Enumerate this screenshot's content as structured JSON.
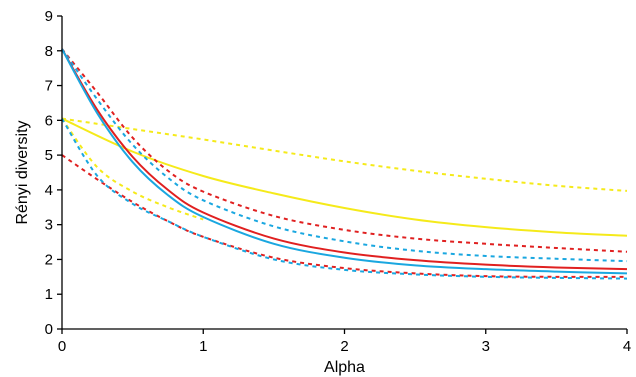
{
  "chart_data": {
    "type": "line",
    "xlabel": "Alpha",
    "ylabel": "Rényi diversity",
    "xlim": [
      0,
      4
    ],
    "ylim": [
      0,
      9
    ],
    "xticks": [
      0,
      1,
      2,
      3,
      4
    ],
    "yticks": [
      0,
      1,
      2,
      3,
      4,
      5,
      6,
      7,
      8,
      9
    ],
    "grid": false,
    "legend": "none",
    "series": [
      {
        "color": "#f5ea1a",
        "style": "dashed",
        "x": [
          0,
          0.5,
          1,
          1.5,
          2,
          2.5,
          3,
          3.5,
          4
        ],
        "y": [
          6.05,
          5.75,
          5.45,
          5.13,
          4.82,
          4.55,
          4.32,
          4.12,
          3.97
        ]
      },
      {
        "color": "#f5ea1a",
        "style": "solid",
        "x": [
          0,
          0.5,
          1,
          1.5,
          2,
          2.5,
          3,
          3.5,
          4
        ],
        "y": [
          6.05,
          5.1,
          4.4,
          3.9,
          3.48,
          3.15,
          2.93,
          2.78,
          2.68
        ]
      },
      {
        "color": "#e02020",
        "style": "dashed",
        "x": [
          0,
          0.25,
          0.5,
          0.75,
          1,
          1.5,
          2,
          2.5,
          3,
          3.5,
          4
        ],
        "y": [
          8.05,
          6.8,
          5.5,
          4.55,
          3.95,
          3.25,
          2.85,
          2.6,
          2.45,
          2.33,
          2.22
        ]
      },
      {
        "color": "#1aa7e0",
        "style": "dashed",
        "x": [
          0,
          0.25,
          0.5,
          0.75,
          1,
          1.5,
          2,
          2.5,
          3,
          3.5,
          4
        ],
        "y": [
          8.05,
          6.6,
          5.3,
          4.35,
          3.7,
          2.95,
          2.52,
          2.25,
          2.1,
          2.02,
          1.95
        ]
      },
      {
        "color": "#e02020",
        "style": "solid",
        "x": [
          0,
          0.25,
          0.5,
          0.75,
          1,
          1.5,
          2,
          2.5,
          3,
          3.5,
          4
        ],
        "y": [
          8.05,
          6.3,
          4.95,
          4.0,
          3.35,
          2.6,
          2.2,
          1.98,
          1.85,
          1.77,
          1.72
        ]
      },
      {
        "color": "#1aa7e0",
        "style": "solid",
        "x": [
          0,
          0.25,
          0.5,
          0.75,
          1,
          1.5,
          2,
          2.5,
          3,
          3.5,
          4
        ],
        "y": [
          8.05,
          6.2,
          4.8,
          3.85,
          3.22,
          2.45,
          2.05,
          1.83,
          1.72,
          1.65,
          1.6
        ]
      },
      {
        "color": "#f5ea1a",
        "style": "dashed",
        "x": [
          0,
          0.25,
          0.5,
          0.75,
          1
        ],
        "y": [
          6.05,
          4.65,
          3.95,
          3.5,
          3.15
        ]
      },
      {
        "color": "#e02020",
        "style": "dashed",
        "x": [
          0,
          0.25,
          0.5,
          0.75,
          1,
          1.5,
          2,
          2.5,
          3,
          3.5,
          4
        ],
        "y": [
          5.0,
          4.3,
          3.65,
          3.1,
          2.65,
          2.05,
          1.75,
          1.6,
          1.52,
          1.5,
          1.5
        ]
      },
      {
        "color": "#1aa7e0",
        "style": "dashed",
        "x": [
          0,
          0.25,
          0.5,
          0.75,
          1,
          1.5,
          2,
          2.5,
          3,
          3.5,
          4
        ],
        "y": [
          6.05,
          4.4,
          3.6,
          3.1,
          2.65,
          2.0,
          1.7,
          1.57,
          1.5,
          1.47,
          1.45
        ]
      }
    ]
  }
}
